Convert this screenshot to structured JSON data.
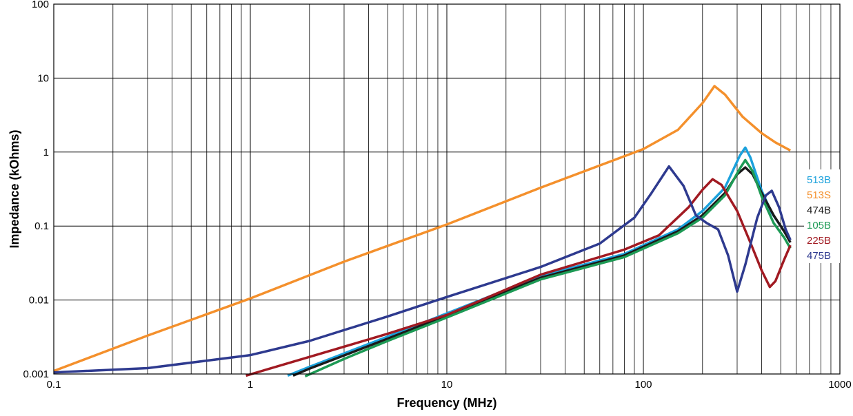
{
  "chart_data": {
    "type": "line",
    "title": "",
    "xlabel": "Frequency (MHz)",
    "ylabel": "Impedance (kOhms)",
    "x_scale": "log",
    "y_scale": "log",
    "xlim": [
      0.1,
      1000
    ],
    "ylim": [
      0.001,
      100
    ],
    "x_ticks": [
      "0.1",
      "1",
      "10",
      "100",
      "1000"
    ],
    "y_ticks": [
      "0.001",
      "0.01",
      "0.1",
      "1",
      "10",
      "100"
    ],
    "grid": true,
    "legend_position": "right",
    "series": [
      {
        "name": "513B",
        "color": "#1ba1dc",
        "points": [
          [
            1.55,
            0.00095
          ],
          [
            2,
            0.00125
          ],
          [
            5,
            0.0032
          ],
          [
            10,
            0.0066
          ],
          [
            30,
            0.021
          ],
          [
            80,
            0.042
          ],
          [
            150,
            0.09
          ],
          [
            200,
            0.16
          ],
          [
            260,
            0.33
          ],
          [
            310,
            0.9
          ],
          [
            330,
            1.15
          ],
          [
            350,
            0.85
          ],
          [
            400,
            0.3
          ],
          [
            450,
            0.15
          ],
          [
            500,
            0.1
          ],
          [
            560,
            0.065
          ]
        ]
      },
      {
        "name": "513S",
        "color": "#f4902c",
        "points": [
          [
            0.1,
            0.0011
          ],
          [
            0.3,
            0.0033
          ],
          [
            1,
            0.0105
          ],
          [
            3,
            0.033
          ],
          [
            10,
            0.105
          ],
          [
            30,
            0.33
          ],
          [
            100,
            1.1
          ],
          [
            150,
            2.0
          ],
          [
            200,
            4.6
          ],
          [
            230,
            7.8
          ],
          [
            260,
            6.0
          ],
          [
            320,
            3.0
          ],
          [
            400,
            1.8
          ],
          [
            470,
            1.35
          ],
          [
            560,
            1.05
          ]
        ]
      },
      {
        "name": "474B",
        "color": "#1a1a1a",
        "points": [
          [
            1.65,
            0.00095
          ],
          [
            2,
            0.00118
          ],
          [
            5,
            0.003
          ],
          [
            10,
            0.0062
          ],
          [
            30,
            0.02
          ],
          [
            80,
            0.04
          ],
          [
            150,
            0.085
          ],
          [
            200,
            0.14
          ],
          [
            260,
            0.28
          ],
          [
            300,
            0.5
          ],
          [
            330,
            0.62
          ],
          [
            360,
            0.5
          ],
          [
            400,
            0.28
          ],
          [
            460,
            0.14
          ],
          [
            520,
            0.085
          ],
          [
            560,
            0.06
          ]
        ]
      },
      {
        "name": "105B",
        "color": "#1d9a55",
        "points": [
          [
            1.9,
            0.00093
          ],
          [
            3,
            0.0016
          ],
          [
            5,
            0.0028
          ],
          [
            10,
            0.0058
          ],
          [
            30,
            0.019
          ],
          [
            80,
            0.038
          ],
          [
            150,
            0.08
          ],
          [
            200,
            0.13
          ],
          [
            260,
            0.26
          ],
          [
            310,
            0.6
          ],
          [
            330,
            0.78
          ],
          [
            360,
            0.55
          ],
          [
            400,
            0.25
          ],
          [
            460,
            0.11
          ],
          [
            520,
            0.07
          ],
          [
            560,
            0.05
          ]
        ]
      },
      {
        "name": "225B",
        "color": "#a11a22",
        "points": [
          [
            0.95,
            0.00095
          ],
          [
            2,
            0.0017
          ],
          [
            5,
            0.0035
          ],
          [
            10,
            0.0063
          ],
          [
            30,
            0.022
          ],
          [
            80,
            0.048
          ],
          [
            120,
            0.075
          ],
          [
            170,
            0.18
          ],
          [
            200,
            0.31
          ],
          [
            225,
            0.43
          ],
          [
            250,
            0.36
          ],
          [
            300,
            0.16
          ],
          [
            350,
            0.06
          ],
          [
            400,
            0.025
          ],
          [
            440,
            0.015
          ],
          [
            470,
            0.018
          ],
          [
            520,
            0.035
          ],
          [
            560,
            0.055
          ]
        ]
      },
      {
        "name": "475B",
        "color": "#2e3a8f",
        "points": [
          [
            0.1,
            0.00105
          ],
          [
            0.3,
            0.0012
          ],
          [
            1,
            0.0018
          ],
          [
            2,
            0.0028
          ],
          [
            5,
            0.006
          ],
          [
            10,
            0.011
          ],
          [
            30,
            0.028
          ],
          [
            60,
            0.058
          ],
          [
            90,
            0.13
          ],
          [
            110,
            0.28
          ],
          [
            135,
            0.64
          ],
          [
            160,
            0.35
          ],
          [
            185,
            0.14
          ],
          [
            210,
            0.11
          ],
          [
            240,
            0.09
          ],
          [
            270,
            0.04
          ],
          [
            300,
            0.013
          ],
          [
            330,
            0.03
          ],
          [
            380,
            0.13
          ],
          [
            420,
            0.26
          ],
          [
            450,
            0.3
          ],
          [
            490,
            0.18
          ],
          [
            530,
            0.09
          ],
          [
            560,
            0.065
          ]
        ]
      }
    ]
  }
}
